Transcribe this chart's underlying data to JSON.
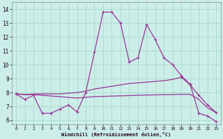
{
  "xlabel": "Windchill (Refroidissement éolien,°C)",
  "bg_color": "#cceee8",
  "grid_color": "#aaddcc",
  "line_color": "#993399",
  "xlim": [
    -0.5,
    23.5
  ],
  "ylim": [
    5.7,
    14.5
  ],
  "xticks": [
    0,
    1,
    2,
    3,
    4,
    5,
    6,
    7,
    8,
    9,
    10,
    11,
    12,
    13,
    14,
    15,
    16,
    17,
    18,
    19,
    20,
    21,
    22,
    23
  ],
  "yticks": [
    6,
    7,
    8,
    9,
    10,
    11,
    12,
    13,
    14
  ],
  "line1_x": [
    0,
    1,
    2,
    3,
    4,
    5,
    6,
    7,
    8,
    9,
    10,
    11,
    12,
    13,
    14,
    15,
    16,
    17,
    18,
    19,
    20,
    21,
    22,
    23
  ],
  "line1_y": [
    7.9,
    7.5,
    7.8,
    6.5,
    6.5,
    6.8,
    7.1,
    6.6,
    8.0,
    10.9,
    13.8,
    13.8,
    13.0,
    10.2,
    10.5,
    12.9,
    11.8,
    10.5,
    10.0,
    9.2,
    8.6,
    6.5,
    6.3,
    5.9
  ],
  "line1_markers": [
    0,
    1,
    2,
    3,
    4,
    5,
    6,
    7,
    8,
    9,
    10,
    11,
    12,
    13,
    14,
    15,
    16,
    17,
    18,
    19,
    20,
    21,
    22,
    23
  ],
  "line2_x": [
    0,
    1,
    2,
    3,
    4,
    5,
    6,
    7,
    8,
    9,
    10,
    11,
    12,
    13,
    14,
    15,
    16,
    17,
    18,
    19,
    20,
    21,
    22,
    23
  ],
  "line2_y": [
    7.9,
    7.85,
    7.9,
    7.9,
    7.9,
    7.9,
    7.95,
    8.0,
    8.1,
    8.25,
    8.35,
    8.45,
    8.55,
    8.65,
    8.7,
    8.75,
    8.8,
    8.85,
    8.95,
    9.1,
    8.55,
    7.8,
    7.1,
    6.55
  ],
  "line2_markers": [
    0,
    19,
    20,
    21,
    22,
    23
  ],
  "line3_x": [
    0,
    1,
    2,
    3,
    4,
    5,
    6,
    7,
    8,
    9,
    10,
    11,
    12,
    13,
    14,
    15,
    16,
    17,
    18,
    19,
    20,
    21,
    22,
    23
  ],
  "line3_y": [
    7.9,
    7.85,
    7.85,
    7.8,
    7.75,
    7.7,
    7.65,
    7.6,
    7.65,
    7.7,
    7.72,
    7.74,
    7.76,
    7.78,
    7.8,
    7.82,
    7.83,
    7.84,
    7.85,
    7.87,
    7.87,
    7.5,
    6.9,
    6.55
  ]
}
